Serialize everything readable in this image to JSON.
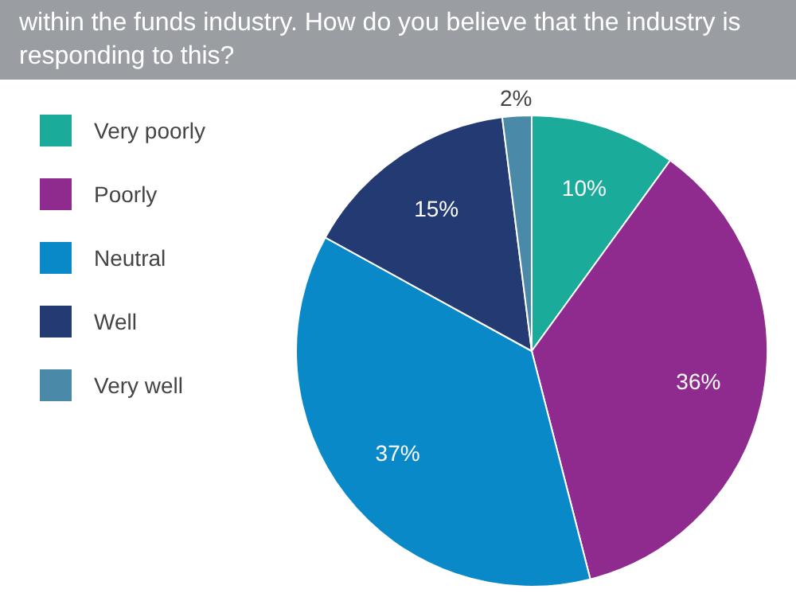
{
  "chart_data": {
    "type": "pie",
    "title": "within the funds industry. How do you believe that the industry is responding to this?",
    "categories": [
      "Very poorly",
      "Poorly",
      "Neutral",
      "Well",
      "Very well"
    ],
    "values": [
      10,
      36,
      37,
      15,
      2
    ],
    "value_labels": [
      "10%",
      "36%",
      "37%",
      "15%",
      "2%"
    ],
    "colors": [
      "#1aab9b",
      "#8f2a8f",
      "#0a89c9",
      "#233a72",
      "#4b89a9"
    ],
    "legend": "left"
  }
}
